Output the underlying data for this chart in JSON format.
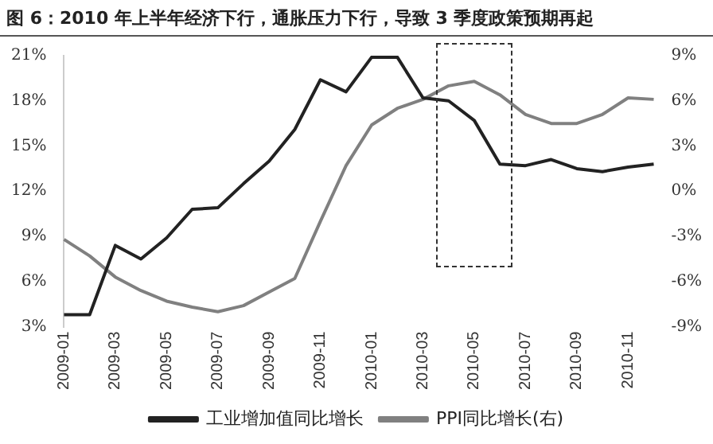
{
  "chart_data": {
    "type": "line",
    "title": "图 6：2010 年上半年经济下行，通胀压力下行，导致 3 季度政策预期再起",
    "categories": [
      "2009-01",
      null,
      "2009-03",
      null,
      "2009-05",
      null,
      "2009-07",
      null,
      "2009-09",
      null,
      "2009-11",
      null,
      "2010-01",
      null,
      "2010-03",
      null,
      "2010-05",
      null,
      "2010-07",
      null,
      "2010-09",
      null,
      "2010-11",
      null
    ],
    "series": [
      {
        "name": "工业增加值同比增长",
        "color": "#222222",
        "values": [
          3.8,
          3.8,
          8.4,
          7.5,
          8.9,
          10.8,
          10.9,
          12.5,
          14.0,
          16.1,
          19.4,
          18.6,
          20.9,
          20.9,
          18.2,
          18.0,
          16.7,
          13.8,
          13.7,
          14.1,
          13.5,
          13.3,
          13.6,
          13.8
        ]
      },
      {
        "name": "PPI同比增长(右)",
        "color": "#808080",
        "axis": "y2",
        "values": [
          -3.2,
          -4.3,
          -5.7,
          -6.6,
          -7.3,
          -7.7,
          -8.0,
          -7.6,
          -6.7,
          -5.8,
          -2.0,
          1.7,
          4.4,
          5.5,
          6.1,
          7.0,
          7.3,
          6.4,
          5.1,
          4.5,
          4.5,
          5.1,
          6.2,
          6.1
        ]
      }
    ],
    "ylim": [
      3,
      21
    ],
    "yticks": [
      {
        "value": 3,
        "label": "3%"
      },
      {
        "value": 6,
        "label": "6%"
      },
      {
        "value": 9,
        "label": "9%"
      },
      {
        "value": 12,
        "label": "12%"
      },
      {
        "value": 15,
        "label": "15%"
      },
      {
        "value": 18,
        "label": "18%"
      },
      {
        "value": 21,
        "label": "21%"
      }
    ],
    "y2lim": [
      -9,
      9
    ],
    "y2ticks": [
      {
        "value": -9,
        "label": "-9%"
      },
      {
        "value": -6,
        "label": "-6%"
      },
      {
        "value": -3,
        "label": "-3%"
      },
      {
        "value": 0,
        "label": "0%"
      },
      {
        "value": 3,
        "label": "3%"
      },
      {
        "value": 6,
        "label": "6%"
      },
      {
        "value": 9,
        "label": "9%"
      }
    ],
    "legend": "bottom",
    "grid": false,
    "marker": "none",
    "line_style": "solid"
  }
}
